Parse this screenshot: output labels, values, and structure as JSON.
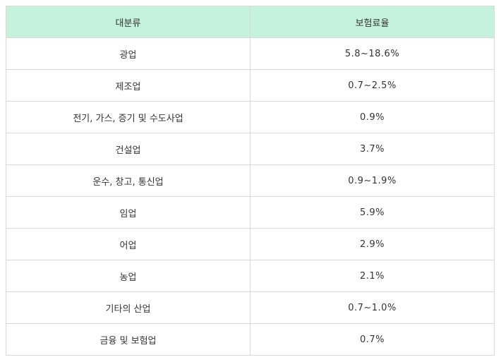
{
  "table": {
    "headers": [
      "대분류",
      "보험료율"
    ],
    "rows": [
      {
        "category": "광업",
        "rate": "5.8~18.6%"
      },
      {
        "category": "제조업",
        "rate": "0.7~2.5%"
      },
      {
        "category": "전기, 가스, 증기 및 수도사업",
        "rate": "0.9%"
      },
      {
        "category": "건설업",
        "rate": "3.7%"
      },
      {
        "category": "운수, 창고, 통신업",
        "rate": "0.9~1.9%"
      },
      {
        "category": "임업",
        "rate": "5.9%"
      },
      {
        "category": "어업",
        "rate": "2.9%"
      },
      {
        "category": "농업",
        "rate": "2.1%"
      },
      {
        "category": "기타의 산업",
        "rate": "0.7~1.0%"
      },
      {
        "category": "금융 및 보험업",
        "rate": "0.7%"
      }
    ]
  },
  "colors": {
    "header_bg": "#c5f2dc",
    "border": "#d9d9d9",
    "text": "#333333"
  }
}
